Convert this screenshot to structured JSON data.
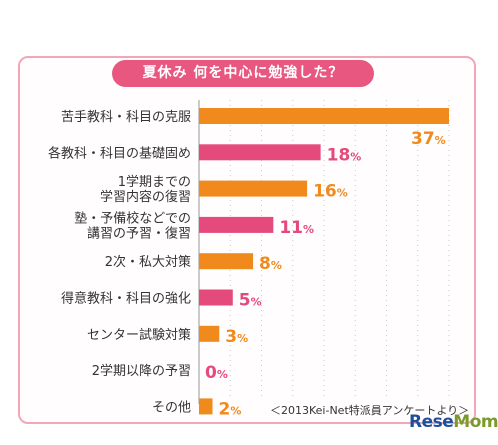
{
  "title": "夏休み 何を中心に勉強した？",
  "source": "＜2013Kei-Net特派員アンケートより＞",
  "logo": "ReseMom",
  "colors": {
    "orange": "#f08a1c",
    "pink": "#e44a7c",
    "title_bg": "#e8577f",
    "border": "#f2a7b8"
  },
  "chart_data": {
    "type": "bar",
    "orientation": "horizontal",
    "unit": "%",
    "categories": [
      [
        "苦手教科・科目の克服"
      ],
      [
        "各教科・科目の基礎固め"
      ],
      [
        "1学期までの",
        "学習内容の復習"
      ],
      [
        "塾・予備校などでの",
        "講習の予習・復習"
      ],
      [
        "2次・私大対策"
      ],
      [
        "得意教科・科目の強化"
      ],
      [
        "センター試験対策"
      ],
      [
        "2学期以降の予習"
      ],
      [
        "その他"
      ]
    ],
    "values": [
      37,
      18,
      16,
      11,
      8,
      5,
      3,
      0,
      2
    ],
    "value_labels": [
      "37%",
      "18%",
      "16%",
      "11%",
      "8%",
      "5%",
      "3%",
      "0%",
      "2%"
    ],
    "bar_colors": [
      "orange",
      "pink",
      "orange",
      "pink",
      "orange",
      "pink",
      "orange",
      "pink",
      "orange"
    ],
    "xlim": [
      0,
      37
    ],
    "grid": "dotted vertical"
  }
}
